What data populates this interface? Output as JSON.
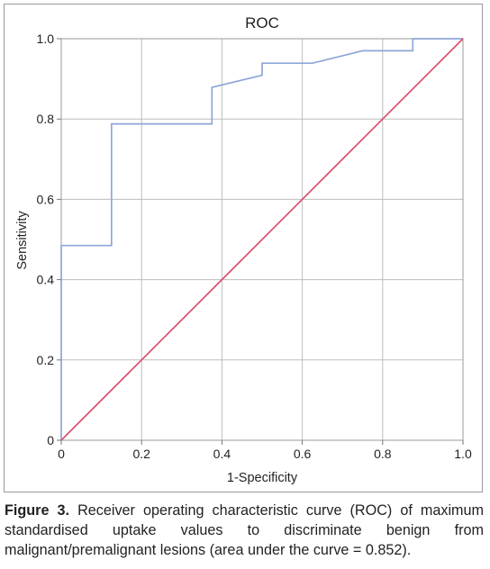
{
  "chart_data": {
    "type": "line",
    "title": "ROC",
    "xlabel": "1-Specificity",
    "ylabel": "Sensitivity",
    "xlim": [
      0,
      1
    ],
    "ylim": [
      0,
      1
    ],
    "x_ticks": [
      "0",
      "0.2",
      "0.4",
      "0.6",
      "0.8",
      "1.0"
    ],
    "y_ticks": [
      "0",
      "0.2",
      "0.4",
      "0.6",
      "0.8",
      "1.0"
    ],
    "grid": true,
    "series": [
      {
        "color": "#8ea6d8",
        "points": [
          [
            0.0,
            0.0
          ],
          [
            0.0,
            0.485
          ],
          [
            0.125,
            0.485
          ],
          [
            0.125,
            0.788
          ],
          [
            0.375,
            0.788
          ],
          [
            0.375,
            0.879
          ],
          [
            0.5,
            0.909
          ],
          [
            0.5,
            0.939
          ],
          [
            0.625,
            0.939
          ],
          [
            0.75,
            0.97
          ],
          [
            0.875,
            0.97
          ],
          [
            0.875,
            1.0
          ],
          [
            1.0,
            1.0
          ]
        ]
      },
      {
        "color": "#d9546e",
        "points": [
          [
            0,
            0
          ],
          [
            1,
            1
          ]
        ]
      }
    ]
  },
  "caption": {
    "label": "Figure 3.",
    "text": "Receiver operating characteristic curve (ROC) of maximum standardised uptake values to discriminate benign from malignant/premalignant lesions (area under the curve = 0.852)."
  }
}
